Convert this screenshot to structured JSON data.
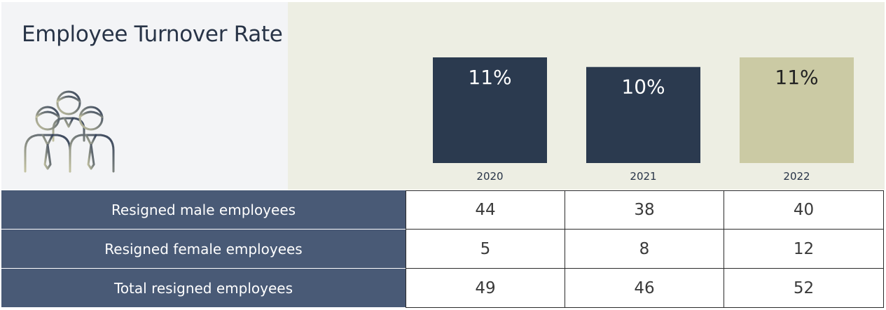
{
  "title": "Employee Turnover Rate",
  "icon": "people-group-icon",
  "colors": {
    "bar_dark": "#2b3a4f",
    "bar_highlight": "#cbcaa4",
    "header_row": "#495a76",
    "chart_background": "#edeee3"
  },
  "chart_data": {
    "type": "bar",
    "categories": [
      "2020",
      "2021",
      "2022"
    ],
    "values": [
      11,
      10,
      11
    ],
    "data_labels": [
      "11%",
      "10%",
      "11%"
    ],
    "highlight_index": 2,
    "ylim": [
      0,
      11
    ],
    "grid": false
  },
  "table": {
    "columns": [
      "2020",
      "2021",
      "2022"
    ],
    "rows": [
      {
        "label": "Resigned male employees",
        "values": [
          "44",
          "38",
          "40"
        ]
      },
      {
        "label": "Resigned female employees",
        "values": [
          "5",
          "8",
          "12"
        ]
      },
      {
        "label": "Total resigned employees",
        "values": [
          "49",
          "46",
          "52"
        ]
      }
    ]
  }
}
